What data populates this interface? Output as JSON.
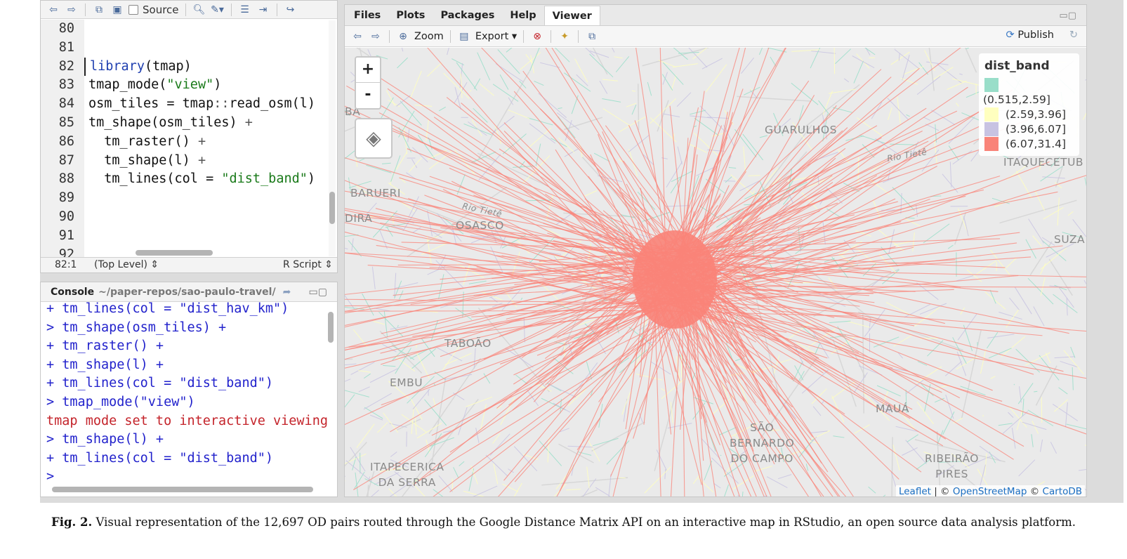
{
  "editor": {
    "toolbar": {
      "source_label": "Source"
    },
    "line_numbers": [
      "80",
      "81",
      "82",
      "83",
      "84",
      "85",
      "86",
      "87",
      "88",
      "89",
      "90",
      "91",
      "92"
    ],
    "code_lines": [
      [],
      [],
      [
        {
          "t": "library",
          "c": "kw"
        },
        {
          "t": "(tmap)",
          "c": ""
        }
      ],
      [
        {
          "t": "tmap_mode(",
          "c": ""
        },
        {
          "t": "\"view\"",
          "c": "str"
        },
        {
          "t": ")",
          "c": ""
        }
      ],
      [
        {
          "t": "osm_tiles = tmap",
          "c": ""
        },
        {
          "t": "::",
          "c": "op"
        },
        {
          "t": "read_osm(l)",
          "c": ""
        }
      ],
      [
        {
          "t": "tm_shape(osm_tiles) ",
          "c": ""
        },
        {
          "t": "+",
          "c": "op"
        }
      ],
      [
        {
          "t": "  tm_raster() ",
          "c": ""
        },
        {
          "t": "+",
          "c": "op"
        }
      ],
      [
        {
          "t": "  tm_shape(l) ",
          "c": ""
        },
        {
          "t": "+",
          "c": "op"
        }
      ],
      [
        {
          "t": "  tm_lines(col = ",
          "c": ""
        },
        {
          "t": "\"dist_band\"",
          "c": "str"
        },
        {
          "t": ")",
          "c": ""
        }
      ],
      [],
      [],
      [],
      []
    ],
    "status": {
      "position": "82:1",
      "scope": "(Top Level) ⇕",
      "file_type": "R Script ⇕"
    }
  },
  "console": {
    "title": "Console",
    "path": "~/paper-repos/sao-paulo-travel/",
    "lines": [
      {
        "text": "+ tm_lines(col = \"dist_hav_km\")",
        "kind": "in"
      },
      {
        "text": "> tm_shape(osm_tiles) +",
        "kind": "in"
      },
      {
        "text": "+ tm_raster() +",
        "kind": "in"
      },
      {
        "text": "+ tm_shape(l) +",
        "kind": "in"
      },
      {
        "text": "+ tm_lines(col = \"dist_band\")",
        "kind": "in"
      },
      {
        "text": "> tmap_mode(\"view\")",
        "kind": "in"
      },
      {
        "text": "tmap mode set to interactive viewing",
        "kind": "err"
      },
      {
        "text": "> tm_shape(l) +",
        "kind": "in"
      },
      {
        "text": "+ tm_lines(col = \"dist_band\")",
        "kind": "in"
      },
      {
        "text": "> ",
        "kind": "in"
      }
    ]
  },
  "viewer": {
    "tabs": [
      "Files",
      "Plots",
      "Packages",
      "Help",
      "Viewer"
    ],
    "active_tab": "Viewer",
    "toolbar": {
      "zoom_label": "Zoom",
      "export_label": "Export ▾",
      "publish_label": "Publish"
    }
  },
  "map": {
    "zoom_in": "+",
    "zoom_out": "-",
    "legend": {
      "title": "dist_band",
      "items": [
        {
          "label": "(0.515,2.59]",
          "color": "#99dec9"
        },
        {
          "label": "(2.59,3.96]",
          "color": "#ffffbf"
        },
        {
          "label": "(3.96,6.07]",
          "color": "#c8c3e2"
        },
        {
          "label": "(6.07,31.4]",
          "color": "#f98378"
        }
      ]
    },
    "places": [
      {
        "name": "BARUERI"
      },
      {
        "name": "OSASCO"
      },
      {
        "name": "GUARULHOS"
      },
      {
        "name": "TABOÃO"
      },
      {
        "name": "EMBU"
      },
      {
        "name": "ITAPECERICA\nDA SERRA"
      },
      {
        "name": "SÃO\nBERNARDO\nDO CAMPO"
      },
      {
        "name": "RIBEIRÃO\nPIRES"
      },
      {
        "name": "MAUÁ"
      },
      {
        "name": "SUZA"
      },
      {
        "name": "ITAQUECETUB"
      },
      {
        "name": "Rio Tietê"
      },
      {
        "name": "Rio Tietê"
      },
      {
        "name": "DIRA"
      },
      {
        "name": "BA"
      }
    ],
    "attribution": {
      "leaflet": "Leaflet",
      "sep1": " | © ",
      "osm": "OpenStreetMap",
      "sep2": " © ",
      "carto": "CartoDB"
    }
  },
  "caption": {
    "label": "Fig. 2.",
    "text": "Visual representation of the 12,697 OD pairs routed through the Google Distance Matrix API on an interactive map in RStudio, an open source data analysis platform."
  }
}
